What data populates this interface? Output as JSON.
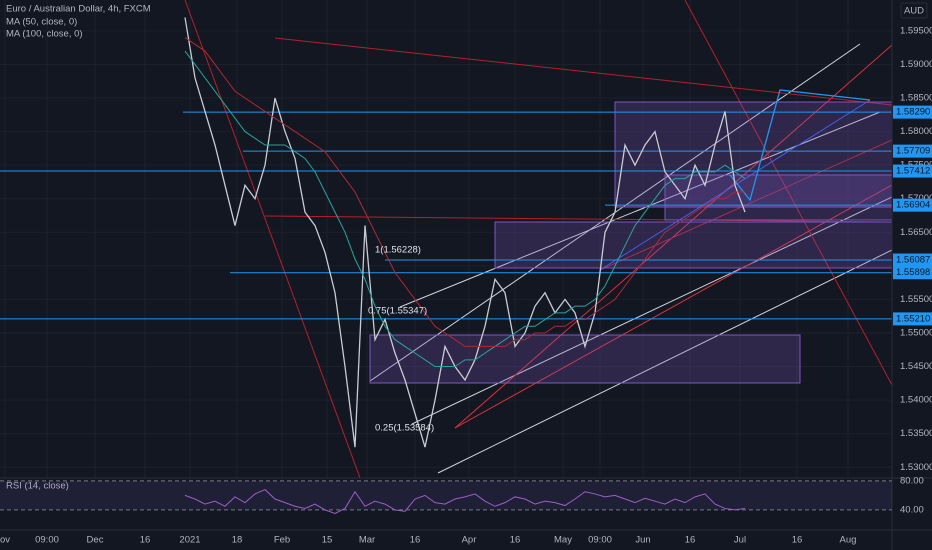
{
  "chart_data": {
    "type": "line",
    "title": "Euro / Australian Dollar, 4h, FXCM",
    "currency": "AUD",
    "xlabels": [
      "ov",
      "09:00",
      "Dec",
      "16",
      "2021",
      "18",
      "Feb",
      "15",
      "Mar",
      "16",
      "Apr",
      "16",
      "May",
      "09:00",
      "Jun",
      "16",
      "Jul",
      "16",
      "Aug"
    ],
    "ylim": [
      1.5284,
      1.5996
    ],
    "yticks": [
      {
        "value": 1.595,
        "label": "1.59500"
      },
      {
        "value": 1.59,
        "label": "1.59000"
      },
      {
        "value": 1.585,
        "label": "1.58500"
      },
      {
        "value": 1.58,
        "label": "1.58000"
      },
      {
        "value": 1.575,
        "label": "1.57500"
      },
      {
        "value": 1.57,
        "label": "1.57000"
      },
      {
        "value": 1.565,
        "label": "1.56500"
      },
      {
        "value": 1.56,
        "label": "1.56000"
      },
      {
        "value": 1.555,
        "label": "1.55500"
      },
      {
        "value": 1.55,
        "label": "1.55000"
      },
      {
        "value": 1.545,
        "label": "1.54500"
      },
      {
        "value": 1.54,
        "label": "1.54000"
      },
      {
        "value": 1.535,
        "label": "1.53500"
      },
      {
        "value": 1.53,
        "label": "1.53000"
      }
    ],
    "grid": true,
    "series": [
      {
        "color": "#c9ccd4",
        "values": [
          1.597,
          1.588,
          1.583,
          1.578,
          1.572,
          1.566,
          1.572,
          1.57,
          1.575,
          1.585,
          1.58,
          1.576,
          1.568,
          1.566,
          1.562,
          1.556,
          1.545,
          1.533,
          1.566,
          1.549,
          1.552,
          1.547,
          1.543,
          1.538,
          1.533,
          1.54,
          1.548,
          1.545,
          1.543,
          1.546,
          1.551,
          1.558,
          1.556,
          1.548,
          1.55,
          1.554,
          1.556,
          1.553,
          1.555,
          1.553,
          1.548,
          1.553,
          1.565,
          1.568,
          1.578,
          1.575,
          1.578,
          1.58,
          1.574,
          1.572,
          1.57,
          1.575,
          1.572,
          1.578,
          1.583,
          1.572,
          1.568
        ]
      },
      {
        "name": "MA (50, close, 0)",
        "color": "#26a69a",
        "values": [
          1.592,
          1.59,
          1.588,
          1.586,
          1.584,
          1.582,
          1.58,
          1.579,
          1.578,
          1.578,
          1.578,
          1.577,
          1.576,
          1.574,
          1.571,
          1.568,
          1.565,
          1.561,
          1.558,
          1.554,
          1.551,
          1.549,
          1.548,
          1.547,
          1.546,
          1.545,
          1.545,
          1.545,
          1.546,
          1.546,
          1.547,
          1.548,
          1.549,
          1.55,
          1.551,
          1.551,
          1.552,
          1.553,
          1.553,
          1.554,
          1.554,
          1.555,
          1.557,
          1.56,
          1.563,
          1.566,
          1.568,
          1.57,
          1.572,
          1.573,
          1.573,
          1.574,
          1.574,
          1.574,
          1.575,
          1.574,
          1.573
        ]
      },
      {
        "name": "MA (100, close, 0)",
        "color": "#b22833",
        "values": [
          1.594,
          1.593,
          1.592,
          1.59,
          1.588,
          1.586,
          1.585,
          1.584,
          1.583,
          1.582,
          1.581,
          1.58,
          1.579,
          1.578,
          1.577,
          1.575,
          1.573,
          1.571,
          1.568,
          1.565,
          1.562,
          1.559,
          1.557,
          1.555,
          1.553,
          1.551,
          1.55,
          1.549,
          1.548,
          1.548,
          1.548,
          1.548,
          1.548,
          1.549,
          1.549,
          1.55,
          1.55,
          1.551,
          1.551,
          1.552,
          1.552,
          1.553,
          1.554,
          1.555,
          1.557,
          1.559,
          1.561,
          1.563,
          1.565,
          1.566,
          1.567,
          1.568,
          1.569,
          1.57,
          1.57,
          1.571,
          1.571
        ]
      }
    ],
    "levels": [
      {
        "value": 1.5829,
        "label": "1.58290"
      },
      {
        "value": 1.57709,
        "label": "1.57709"
      },
      {
        "value": 1.57412,
        "label": "1.57412"
      },
      {
        "value": 1.56904,
        "label": "1.56904"
      },
      {
        "value": 1.56087,
        "label": "1.56087"
      },
      {
        "value": 1.55898,
        "label": "1.55898"
      },
      {
        "value": 1.5521,
        "label": "1.55210"
      }
    ],
    "annotations": [
      "1(1.56228)",
      "0.75(1.55347)",
      "0.25(1.53584)"
    ],
    "rsi": {
      "title": "RSI (14, close)",
      "color": "#9c5fc9",
      "ylim": [
        15,
        84
      ],
      "yticks": [
        {
          "value": 80,
          "label": "80.00"
        },
        {
          "value": 40,
          "label": "40.00"
        }
      ],
      "values": [
        60,
        55,
        48,
        52,
        45,
        58,
        50,
        62,
        68,
        55,
        50,
        45,
        42,
        48,
        40,
        35,
        42,
        65,
        45,
        52,
        48,
        40,
        38,
        55,
        60,
        50,
        48,
        55,
        58,
        62,
        52,
        45,
        50,
        58,
        55,
        48,
        52,
        50,
        46,
        55,
        65,
        62,
        58,
        60,
        55,
        50,
        56,
        52,
        48,
        55,
        50,
        58,
        62,
        48,
        42,
        40,
        42
      ]
    }
  }
}
